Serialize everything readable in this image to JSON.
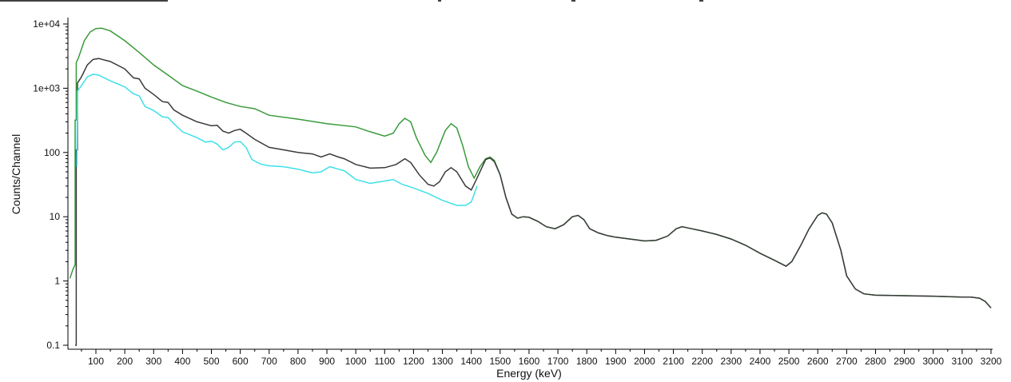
{
  "chart_data": {
    "type": "line",
    "title": "",
    "xlabel": "Energy (keV)",
    "ylabel": "Counts/Channel",
    "x_scale": "linear",
    "y_scale": "log",
    "xlim": [
      0,
      3200
    ],
    "ylim": [
      0.1,
      14000
    ],
    "x_ticks": [
      100,
      200,
      300,
      400,
      500,
      600,
      700,
      800,
      900,
      1000,
      1100,
      1200,
      1300,
      1400,
      1500,
      1600,
      1700,
      1800,
      1900,
      2000,
      2100,
      2200,
      2300,
      2400,
      2500,
      2600,
      2700,
      2800,
      2900,
      3000,
      3100,
      3200
    ],
    "x_tick_labels": [
      "100",
      "200",
      "300",
      "400",
      "500",
      "600",
      "700",
      "800",
      "900",
      "1000",
      "1100",
      "1200",
      "1300",
      "1400",
      "1500",
      "1600",
      "1700",
      "1800",
      "1900",
      "2000",
      "2100",
      "2200",
      "2300",
      "2400",
      "2500",
      "2600",
      "2700",
      "2800",
      "2900",
      "3000",
      "3100",
      "3200"
    ],
    "y_ticks": [
      0.1,
      1,
      10,
      100,
      1000,
      10000
    ],
    "y_tick_labels": [
      "0.1",
      "1",
      "10",
      "100",
      "1e+03",
      "1e+04"
    ],
    "grid": false,
    "legend": "none",
    "series": [
      {
        "color": "#3a9a3a",
        "points": [
          [
            10,
            1.1
          ],
          [
            20,
            1.5
          ],
          [
            28,
            1.8
          ],
          [
            28,
            320
          ],
          [
            32,
            320
          ],
          [
            32,
            2500
          ],
          [
            40,
            3000
          ],
          [
            60,
            5500
          ],
          [
            80,
            7500
          ],
          [
            100,
            8500
          ],
          [
            120,
            8600
          ],
          [
            150,
            7800
          ],
          [
            200,
            5500
          ],
          [
            250,
            3600
          ],
          [
            300,
            2300
          ],
          [
            350,
            1600
          ],
          [
            400,
            1100
          ],
          [
            450,
            900
          ],
          [
            500,
            730
          ],
          [
            550,
            600
          ],
          [
            600,
            520
          ],
          [
            650,
            480
          ],
          [
            700,
            380
          ],
          [
            800,
            330
          ],
          [
            900,
            280
          ],
          [
            1000,
            250
          ],
          [
            1050,
            210
          ],
          [
            1100,
            180
          ],
          [
            1130,
            200
          ],
          [
            1150,
            280
          ],
          [
            1170,
            340
          ],
          [
            1190,
            300
          ],
          [
            1210,
            170
          ],
          [
            1240,
            90
          ],
          [
            1260,
            70
          ],
          [
            1280,
            100
          ],
          [
            1310,
            220
          ],
          [
            1330,
            280
          ],
          [
            1350,
            240
          ],
          [
            1370,
            130
          ],
          [
            1390,
            60
          ],
          [
            1410,
            40
          ],
          [
            1430,
            60
          ],
          [
            1450,
            80
          ],
          [
            1465,
            85
          ],
          [
            1480,
            75
          ],
          [
            1500,
            45
          ],
          [
            1520,
            20
          ],
          [
            1540,
            11
          ],
          [
            1560,
            9.5
          ],
          [
            1580,
            10
          ],
          [
            1600,
            9.8
          ],
          [
            1630,
            8.5
          ],
          [
            1660,
            7
          ],
          [
            1690,
            6.5
          ],
          [
            1720,
            7.5
          ],
          [
            1750,
            10
          ],
          [
            1770,
            10.5
          ],
          [
            1790,
            9
          ],
          [
            1810,
            6.5
          ],
          [
            1840,
            5.6
          ],
          [
            1870,
            5.1
          ],
          [
            1900,
            4.8
          ],
          [
            1950,
            4.5
          ],
          [
            2000,
            4.2
          ],
          [
            2040,
            4.3
          ],
          [
            2080,
            5
          ],
          [
            2110,
            6.5
          ],
          [
            2130,
            7
          ],
          [
            2150,
            6.7
          ],
          [
            2200,
            6
          ],
          [
            2250,
            5.3
          ],
          [
            2300,
            4.5
          ],
          [
            2350,
            3.6
          ],
          [
            2400,
            2.7
          ],
          [
            2450,
            2.1
          ],
          [
            2490,
            1.7
          ],
          [
            2510,
            2
          ],
          [
            2540,
            3.5
          ],
          [
            2570,
            6.5
          ],
          [
            2600,
            10.5
          ],
          [
            2615,
            11.5
          ],
          [
            2630,
            11
          ],
          [
            2650,
            8
          ],
          [
            2680,
            3
          ],
          [
            2700,
            1.2
          ],
          [
            2730,
            0.75
          ],
          [
            2760,
            0.63
          ],
          [
            2800,
            0.6
          ],
          [
            2900,
            0.59
          ],
          [
            3000,
            0.58
          ],
          [
            3100,
            0.56
          ],
          [
            3130,
            0.56
          ],
          [
            3160,
            0.54
          ],
          [
            3180,
            0.48
          ],
          [
            3200,
            0.38
          ]
        ]
      },
      {
        "color": "#3a3a3a",
        "points": [
          [
            28,
            0.1
          ],
          [
            32,
            0.1
          ],
          [
            32,
            110
          ],
          [
            36,
            110
          ],
          [
            36,
            1200
          ],
          [
            50,
            1500
          ],
          [
            70,
            2300
          ],
          [
            90,
            2800
          ],
          [
            110,
            2900
          ],
          [
            150,
            2600
          ],
          [
            200,
            2000
          ],
          [
            230,
            1450
          ],
          [
            250,
            1400
          ],
          [
            270,
            1000
          ],
          [
            300,
            800
          ],
          [
            330,
            620
          ],
          [
            350,
            600
          ],
          [
            370,
            460
          ],
          [
            400,
            380
          ],
          [
            450,
            300
          ],
          [
            500,
            260
          ],
          [
            520,
            265
          ],
          [
            540,
            215
          ],
          [
            560,
            200
          ],
          [
            580,
            220
          ],
          [
            600,
            230
          ],
          [
            620,
            200
          ],
          [
            650,
            160
          ],
          [
            700,
            120
          ],
          [
            750,
            110
          ],
          [
            800,
            100
          ],
          [
            850,
            95
          ],
          [
            880,
            85
          ],
          [
            910,
            95
          ],
          [
            940,
            85
          ],
          [
            960,
            80
          ],
          [
            1000,
            65
          ],
          [
            1050,
            57
          ],
          [
            1100,
            58
          ],
          [
            1140,
            65
          ],
          [
            1170,
            80
          ],
          [
            1190,
            70
          ],
          [
            1220,
            45
          ],
          [
            1250,
            32
          ],
          [
            1270,
            30
          ],
          [
            1290,
            35
          ],
          [
            1310,
            50
          ],
          [
            1330,
            58
          ],
          [
            1350,
            50
          ],
          [
            1380,
            30
          ],
          [
            1400,
            26
          ],
          [
            1420,
            40
          ],
          [
            1450,
            78
          ],
          [
            1465,
            82
          ],
          [
            1480,
            72
          ],
          [
            1500,
            45
          ],
          [
            1520,
            20
          ],
          [
            1540,
            11
          ],
          [
            1560,
            9.5
          ],
          [
            1580,
            10
          ],
          [
            1600,
            9.8
          ],
          [
            1630,
            8.5
          ],
          [
            1660,
            7
          ],
          [
            1690,
            6.5
          ],
          [
            1720,
            7.5
          ],
          [
            1750,
            10
          ],
          [
            1770,
            10.5
          ],
          [
            1790,
            9
          ],
          [
            1810,
            6.5
          ],
          [
            1840,
            5.6
          ],
          [
            1870,
            5.1
          ],
          [
            1900,
            4.8
          ],
          [
            1950,
            4.5
          ],
          [
            2000,
            4.2
          ],
          [
            2040,
            4.3
          ],
          [
            2080,
            5
          ],
          [
            2110,
            6.5
          ],
          [
            2130,
            7
          ],
          [
            2150,
            6.7
          ],
          [
            2200,
            6
          ],
          [
            2250,
            5.3
          ],
          [
            2300,
            4.5
          ],
          [
            2350,
            3.6
          ],
          [
            2400,
            2.7
          ],
          [
            2450,
            2.1
          ],
          [
            2490,
            1.7
          ],
          [
            2510,
            2
          ],
          [
            2540,
            3.5
          ],
          [
            2570,
            6.5
          ],
          [
            2600,
            10.5
          ],
          [
            2615,
            11.5
          ],
          [
            2630,
            11
          ],
          [
            2650,
            8
          ],
          [
            2680,
            3
          ],
          [
            2700,
            1.2
          ],
          [
            2730,
            0.75
          ],
          [
            2760,
            0.63
          ],
          [
            2800,
            0.6
          ],
          [
            2900,
            0.59
          ],
          [
            3000,
            0.58
          ],
          [
            3100,
            0.56
          ],
          [
            3130,
            0.56
          ],
          [
            3160,
            0.54
          ],
          [
            3180,
            0.48
          ],
          [
            3200,
            0.38
          ]
        ]
      },
      {
        "color": "#3ee0e8",
        "points": [
          [
            34,
            60
          ],
          [
            36,
            900
          ],
          [
            50,
            1100
          ],
          [
            70,
            1500
          ],
          [
            90,
            1650
          ],
          [
            110,
            1600
          ],
          [
            150,
            1300
          ],
          [
            200,
            1050
          ],
          [
            230,
            820
          ],
          [
            250,
            760
          ],
          [
            270,
            520
          ],
          [
            300,
            450
          ],
          [
            330,
            360
          ],
          [
            350,
            350
          ],
          [
            370,
            280
          ],
          [
            400,
            210
          ],
          [
            450,
            170
          ],
          [
            480,
            145
          ],
          [
            500,
            150
          ],
          [
            520,
            135
          ],
          [
            540,
            110
          ],
          [
            560,
            120
          ],
          [
            580,
            145
          ],
          [
            600,
            148
          ],
          [
            620,
            120
          ],
          [
            640,
            78
          ],
          [
            670,
            66
          ],
          [
            700,
            62
          ],
          [
            750,
            60
          ],
          [
            800,
            55
          ],
          [
            850,
            48
          ],
          [
            880,
            50
          ],
          [
            910,
            60
          ],
          [
            940,
            55
          ],
          [
            960,
            52
          ],
          [
            1000,
            38
          ],
          [
            1050,
            33
          ],
          [
            1100,
            36
          ],
          [
            1130,
            38
          ],
          [
            1160,
            32
          ],
          [
            1200,
            28
          ],
          [
            1250,
            23
          ],
          [
            1300,
            18
          ],
          [
            1350,
            15
          ],
          [
            1380,
            15
          ],
          [
            1400,
            17
          ],
          [
            1420,
            30
          ]
        ]
      }
    ]
  }
}
